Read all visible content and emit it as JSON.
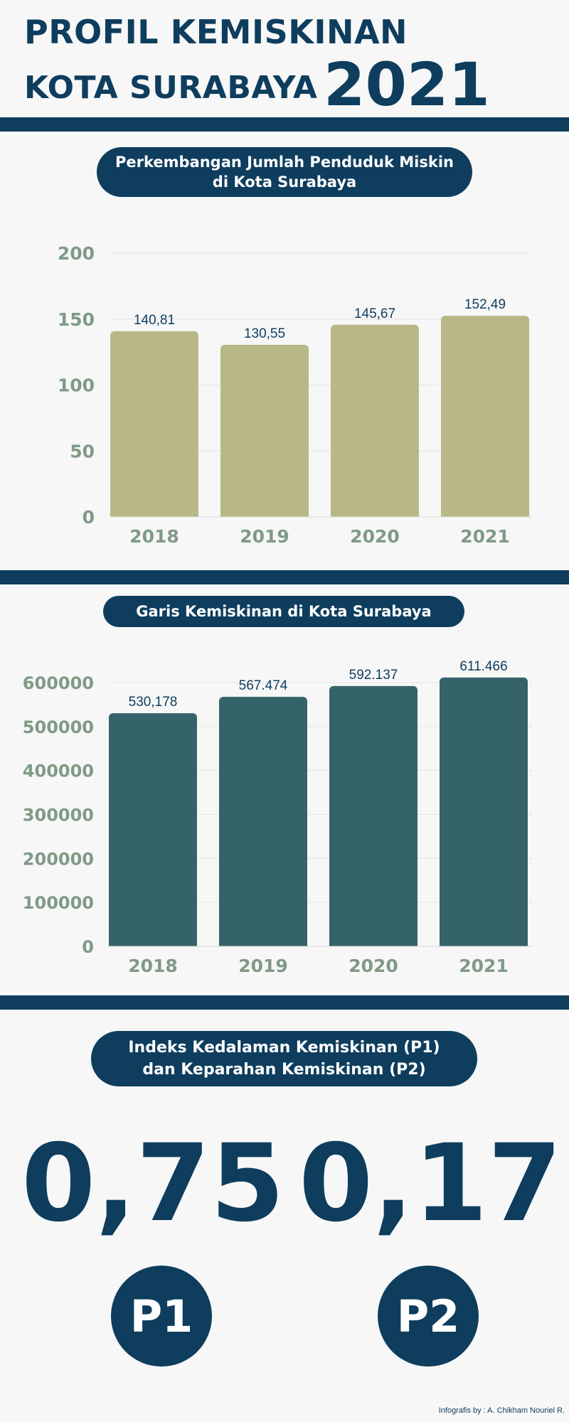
{
  "header": {
    "title_line1": "PROFIL KEMISKINAN",
    "title_line2": "KOTA SURABAYA",
    "title_year": "2021"
  },
  "colors": {
    "navy": "#0e3d5e",
    "bar_olive": "#b8b886",
    "bar_teal": "#35636a",
    "axis_label": "#7f9a87"
  },
  "section1": {
    "title_lines": [
      "Perkembangan Jumlah Penduduk Miskin",
      "di Kota Surabaya"
    ]
  },
  "section2": {
    "title": "Garis Kemiskinan di Kota Surabaya"
  },
  "section3": {
    "title_lines": [
      "Indeks Kedalaman Kemiskinan  (P1)",
      "dan Keparahan Kemiskinan (P2)"
    ],
    "p1": {
      "value": "0,75",
      "label": "P1"
    },
    "p2": {
      "value": "0,17",
      "label": "P2"
    }
  },
  "chart_data": [
    {
      "type": "bar",
      "categories": [
        "2018",
        "2019",
        "2020",
        "2021"
      ],
      "values": [
        140.81,
        130.55,
        145.67,
        152.49
      ],
      "data_labels": [
        "140,81",
        "130,55",
        "145,67",
        "152,49"
      ],
      "yticks": [
        "0",
        "50",
        "100",
        "150",
        "200"
      ],
      "ylim": [
        0,
        200
      ],
      "grid": true
    },
    {
      "type": "bar",
      "categories": [
        "2018",
        "2019",
        "2020",
        "2021"
      ],
      "values": [
        530178,
        567474,
        592137,
        611466
      ],
      "data_labels": [
        "530,178",
        "567.474",
        "592.137",
        "611.466"
      ],
      "yticks": [
        "0",
        "100000",
        "200000",
        "300000",
        "400000",
        "500000",
        "600000"
      ],
      "ylim": [
        0,
        600000
      ],
      "grid": true
    }
  ],
  "footer": {
    "credit": "Infografis by : A. Chikham Nouriel R."
  }
}
